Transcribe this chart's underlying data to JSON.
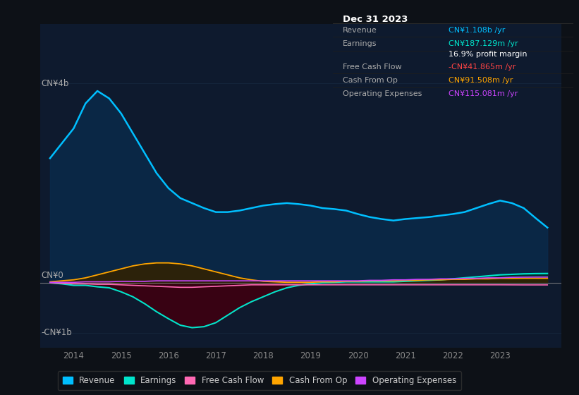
{
  "bg_color": "#0d1117",
  "chart_bg_color": "#0e1a2e",
  "title": "Dec 31 2023",
  "info_box_rows": [
    {
      "label": "Revenue",
      "value": "CN¥1.108b /yr",
      "color": "#00bfff"
    },
    {
      "label": "Earnings",
      "value": "CN¥187.129m /yr",
      "color": "#00e5cc"
    },
    {
      "label": "",
      "value": "16.9% profit margin",
      "color": "#ffffff"
    },
    {
      "label": "Free Cash Flow",
      "value": "-CN¥41.865m /yr",
      "color": "#ff4444"
    },
    {
      "label": "Cash From Op",
      "value": "CN¥91.508m /yr",
      "color": "#ffa500"
    },
    {
      "label": "Operating Expenses",
      "value": "CN¥115.081m /yr",
      "color": "#cc44ff"
    }
  ],
  "ylim": [
    -1300000000.0,
    5200000000.0
  ],
  "xlim": [
    2013.3,
    2024.3
  ],
  "xticks": [
    2014,
    2015,
    2016,
    2017,
    2018,
    2019,
    2020,
    2021,
    2022,
    2023
  ],
  "legend": [
    {
      "label": "Revenue",
      "color": "#00bfff"
    },
    {
      "label": "Earnings",
      "color": "#00e5cc"
    },
    {
      "label": "Free Cash Flow",
      "color": "#ff69b4"
    },
    {
      "label": "Cash From Op",
      "color": "#ffa500"
    },
    {
      "label": "Operating Expenses",
      "color": "#cc44ff"
    }
  ],
  "x": [
    2013.5,
    2013.75,
    2014.0,
    2014.25,
    2014.5,
    2014.75,
    2015.0,
    2015.25,
    2015.5,
    2015.75,
    2016.0,
    2016.25,
    2016.5,
    2016.75,
    2017.0,
    2017.25,
    2017.5,
    2017.75,
    2018.0,
    2018.25,
    2018.5,
    2018.75,
    2019.0,
    2019.25,
    2019.5,
    2019.75,
    2020.0,
    2020.25,
    2020.5,
    2020.75,
    2021.0,
    2021.25,
    2021.5,
    2021.75,
    2022.0,
    2022.25,
    2022.5,
    2022.75,
    2023.0,
    2023.25,
    2023.5,
    2023.75,
    2024.0
  ],
  "revenue": [
    2500000000.0,
    2800000000.0,
    3100000000.0,
    3600000000.0,
    3850000000.0,
    3700000000.0,
    3400000000.0,
    3000000000.0,
    2600000000.0,
    2200000000.0,
    1900000000.0,
    1700000000.0,
    1600000000.0,
    1500000000.0,
    1420000000.0,
    1420000000.0,
    1450000000.0,
    1500000000.0,
    1550000000.0,
    1580000000.0,
    1600000000.0,
    1580000000.0,
    1550000000.0,
    1500000000.0,
    1480000000.0,
    1450000000.0,
    1380000000.0,
    1320000000.0,
    1280000000.0,
    1250000000.0,
    1280000000.0,
    1300000000.0,
    1320000000.0,
    1350000000.0,
    1380000000.0,
    1420000000.0,
    1500000000.0,
    1580000000.0,
    1650000000.0,
    1600000000.0,
    1500000000.0,
    1300000000.0,
    1108000000.0
  ],
  "earnings": [
    0.0,
    -20000000.0,
    -50000000.0,
    -50000000.0,
    -80000000.0,
    -100000000.0,
    -180000000.0,
    -280000000.0,
    -420000000.0,
    -580000000.0,
    -720000000.0,
    -850000000.0,
    -900000000.0,
    -880000000.0,
    -800000000.0,
    -650000000.0,
    -500000000.0,
    -380000000.0,
    -280000000.0,
    -180000000.0,
    -100000000.0,
    -50000000.0,
    -20000000.0,
    0.0,
    10000000.0,
    20000000.0,
    20000000.0,
    20000000.0,
    20000000.0,
    20000000.0,
    30000000.0,
    40000000.0,
    50000000.0,
    60000000.0,
    80000000.0,
    100000000.0,
    120000000.0,
    140000000.0,
    160000000.0,
    170000000.0,
    180000000.0,
    185000000.0,
    187000000.0
  ],
  "free_cash_flow": [
    0.0,
    -10000000.0,
    -20000000.0,
    -20000000.0,
    -30000000.0,
    -30000000.0,
    -40000000.0,
    -50000000.0,
    -60000000.0,
    -70000000.0,
    -80000000.0,
    -90000000.0,
    -90000000.0,
    -80000000.0,
    -70000000.0,
    -60000000.0,
    -50000000.0,
    -40000000.0,
    -40000000.0,
    -40000000.0,
    -40000000.0,
    -40000000.0,
    -40000000.0,
    -40000000.0,
    -40000000.0,
    -40000000.0,
    -40000000.0,
    -40000000.0,
    -40000000.0,
    -40000000.0,
    -40000000.0,
    -40000000.0,
    -40000000.0,
    -40000000.0,
    -40000000.0,
    -40000000.0,
    -40000000.0,
    -40000000.0,
    -40000000.0,
    -41000000.0,
    -42000000.0,
    -42000000.0,
    -41860000.0
  ],
  "cash_from_op": [
    20000000.0,
    40000000.0,
    60000000.0,
    100000000.0,
    160000000.0,
    220000000.0,
    280000000.0,
    340000000.0,
    380000000.0,
    400000000.0,
    400000000.0,
    380000000.0,
    340000000.0,
    280000000.0,
    220000000.0,
    160000000.0,
    100000000.0,
    60000000.0,
    30000000.0,
    20000000.0,
    10000000.0,
    10000000.0,
    10000000.0,
    20000000.0,
    20000000.0,
    30000000.0,
    30000000.0,
    40000000.0,
    40000000.0,
    40000000.0,
    50000000.0,
    50000000.0,
    60000000.0,
    60000000.0,
    70000000.0,
    70000000.0,
    80000000.0,
    80000000.0,
    90000000.0,
    90000000.0,
    92000000.0,
    92000000.0,
    91510000.0
  ],
  "operating_expenses": [
    10000000.0,
    10000000.0,
    10000000.0,
    20000000.0,
    20000000.0,
    20000000.0,
    30000000.0,
    30000000.0,
    30000000.0,
    40000000.0,
    40000000.0,
    40000000.0,
    40000000.0,
    40000000.0,
    40000000.0,
    40000000.0,
    40000000.0,
    40000000.0,
    40000000.0,
    40000000.0,
    40000000.0,
    40000000.0,
    40000000.0,
    40000000.0,
    40000000.0,
    40000000.0,
    40000000.0,
    50000000.0,
    50000000.0,
    60000000.0,
    60000000.0,
    70000000.0,
    70000000.0,
    80000000.0,
    80000000.0,
    90000000.0,
    90000000.0,
    100000000.0,
    100000000.0,
    110000000.0,
    113000000.0,
    115000000.0,
    115080000.0
  ]
}
